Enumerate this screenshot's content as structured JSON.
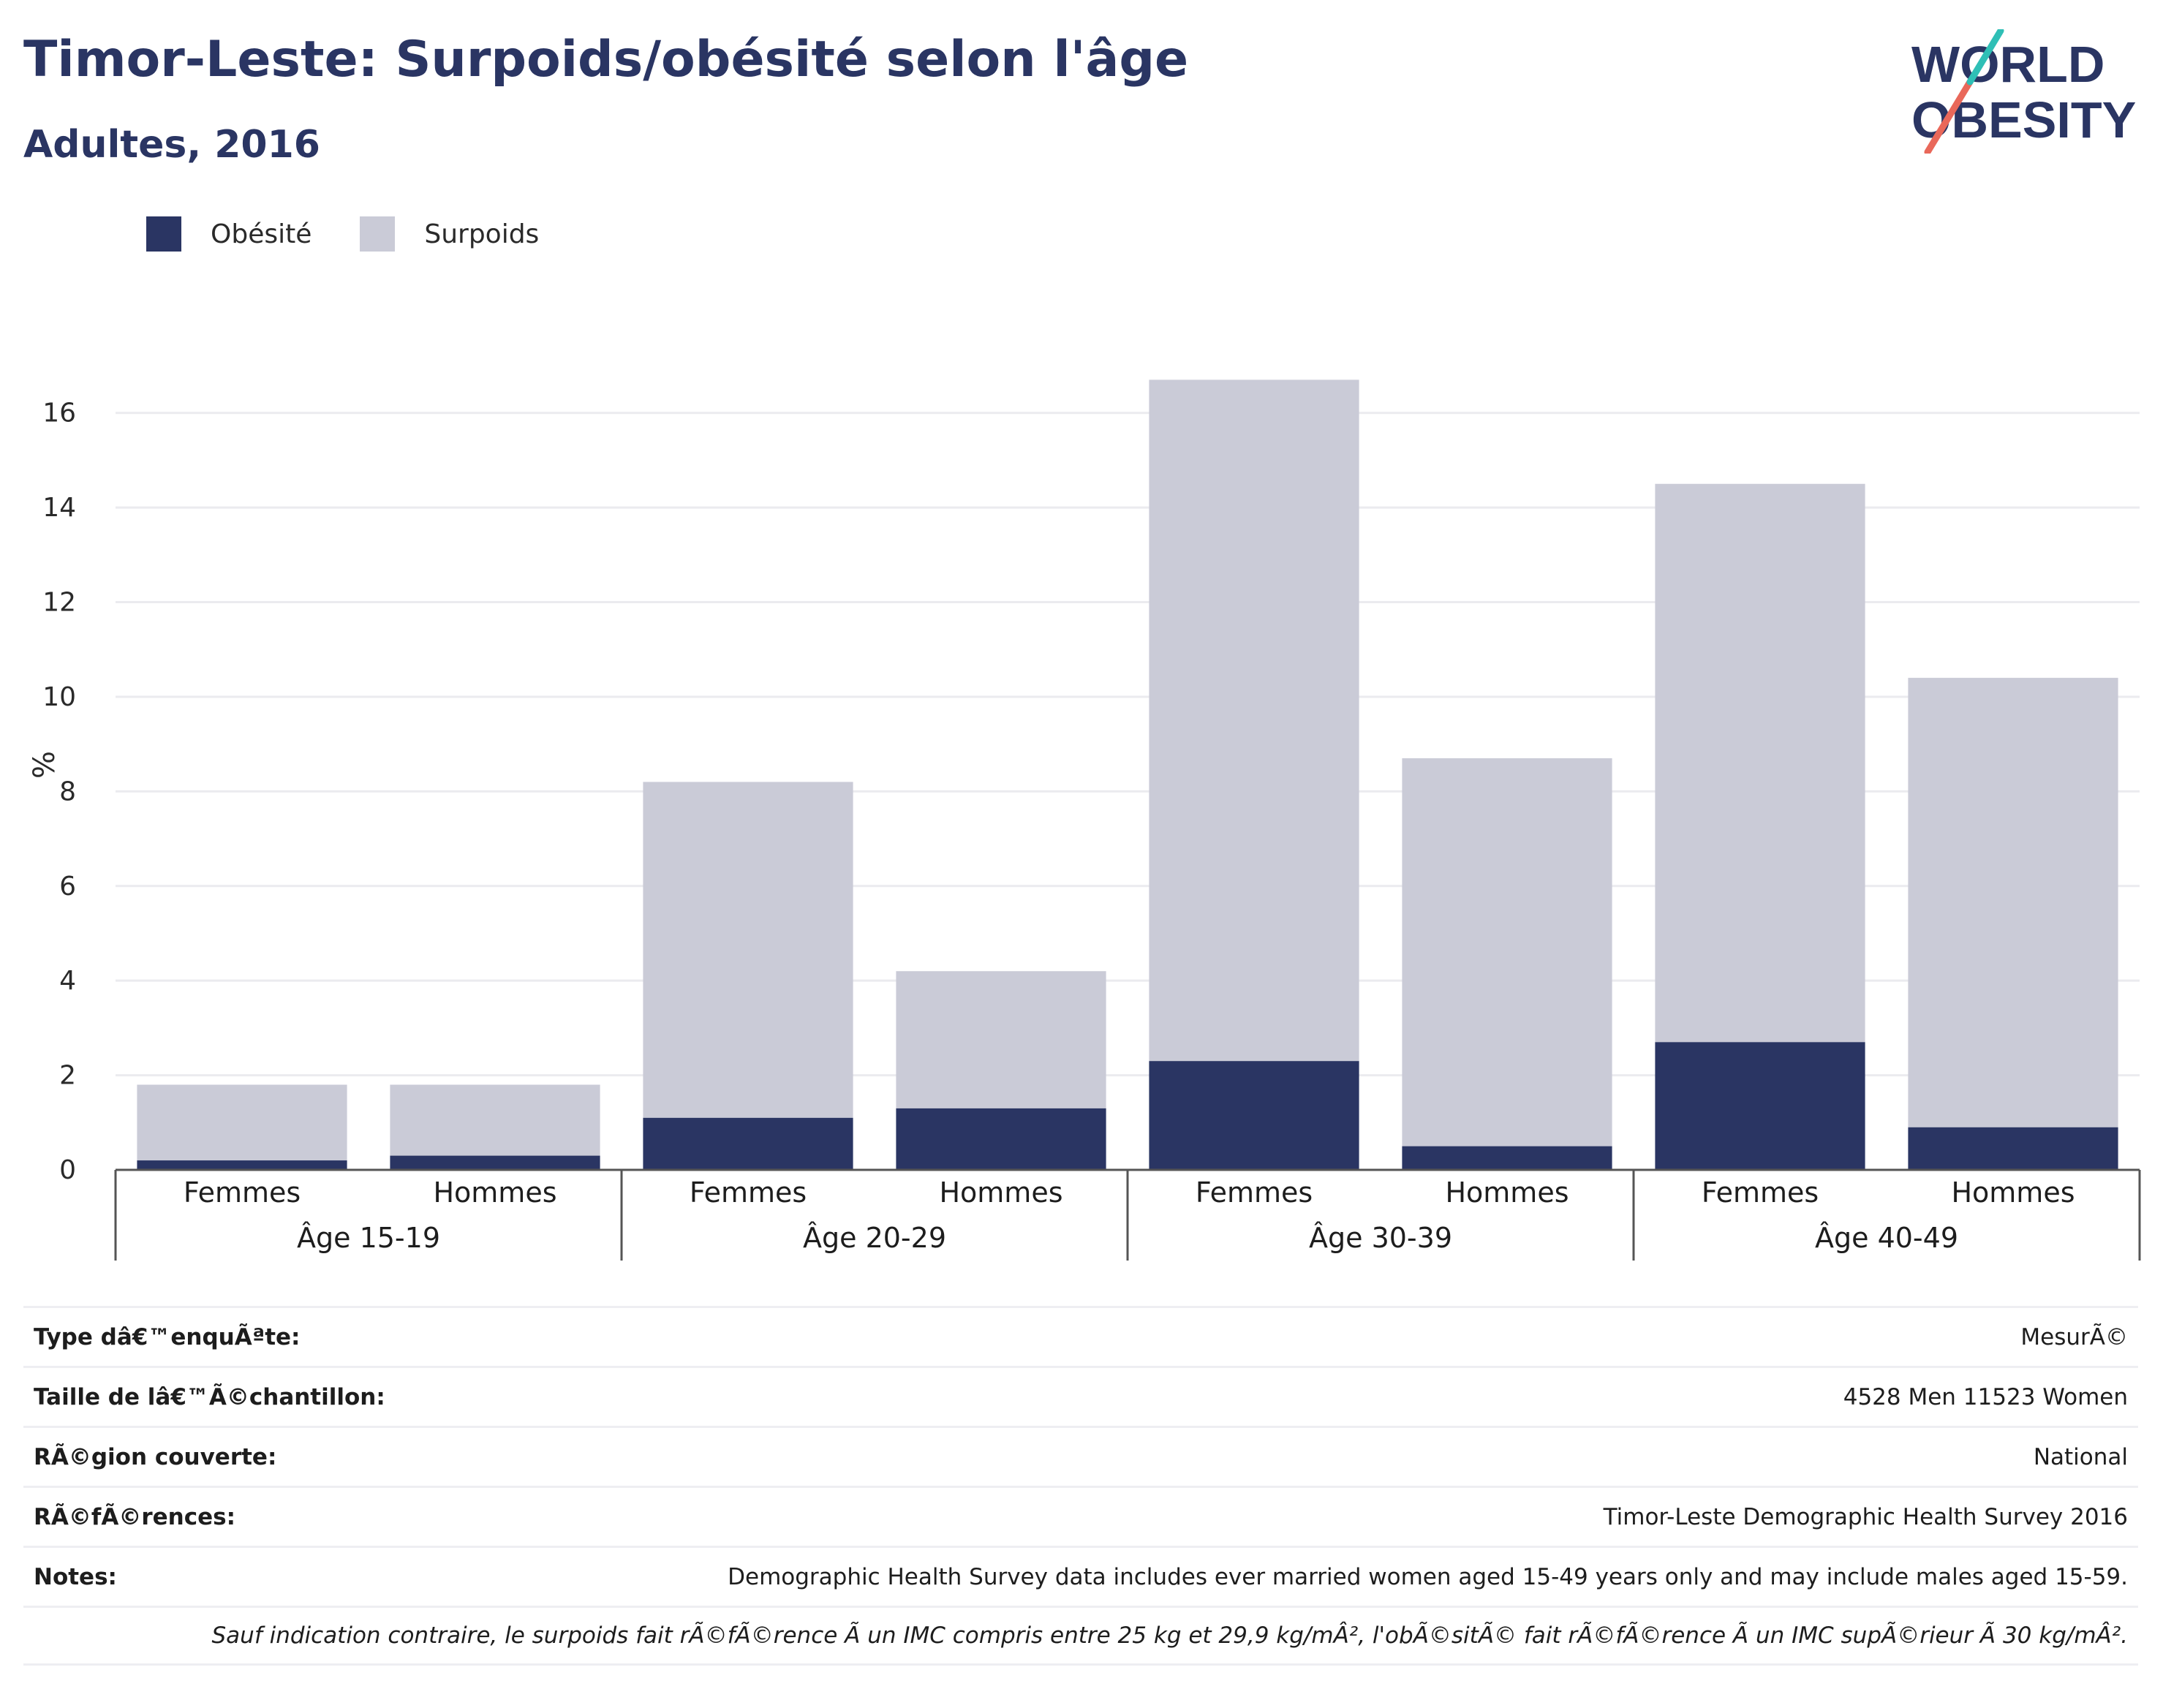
{
  "header": {
    "title": "Timor-Leste: Surpoids/obésité selon l'âge",
    "subtitle": "Adultes, 2016"
  },
  "logo": {
    "line1": "WORLD",
    "line2": "OBESITY"
  },
  "colors": {
    "obesity": "#2a3563",
    "overweight": "#cacbd7",
    "text": "#2a3563",
    "grid": "#ebebef",
    "accent_teal": "#2fbfb6",
    "accent_coral": "#e9685a"
  },
  "legend": [
    {
      "label": "Obésité",
      "color": "#2a3563"
    },
    {
      "label": "Surpoids",
      "color": "#cacbd7"
    }
  ],
  "chart_data": {
    "type": "bar",
    "stacked": true,
    "ylabel": "%",
    "ylim": [
      0,
      17
    ],
    "yticks": [
      0,
      2,
      4,
      6,
      8,
      10,
      12,
      14,
      16
    ],
    "grid": true,
    "legend_position": "top-left",
    "groups": [
      "Âge 15-19",
      "Âge 20-29",
      "Âge 30-39",
      "Âge 40-49"
    ],
    "categories": [
      "Femmes",
      "Hommes",
      "Femmes",
      "Hommes",
      "Femmes",
      "Hommes",
      "Femmes",
      "Hommes"
    ],
    "series": [
      {
        "name": "Obésité",
        "values": [
          0.2,
          0.3,
          1.1,
          1.3,
          2.3,
          0.5,
          2.7,
          0.9
        ]
      },
      {
        "name": "Surpoids",
        "values": [
          1.6,
          1.5,
          7.1,
          2.9,
          14.4,
          8.2,
          11.8,
          9.5
        ]
      }
    ]
  },
  "info_table": [
    {
      "key": "Type dâ€™enquÃªte:",
      "value": "MesurÃ©"
    },
    {
      "key": "Taille de lâ€™Ã©chantillon:",
      "value": "4528 Men 11523 Women"
    },
    {
      "key": "RÃ©gion couverte:",
      "value": "National"
    },
    {
      "key": "RÃ©fÃ©rences:",
      "value": "Timor-Leste Demographic Health Survey 2016"
    },
    {
      "key": "Notes:",
      "value": "Demographic Health Survey data includes ever married women aged 15-49 years only and may include males aged 15-59."
    }
  ],
  "footnote": "Sauf indication contraire, le surpoids fait rÃ©fÃ©rence Ã  un IMC compris entre 25 kg et 29,9 kg/mÂ², l'obÃ©sitÃ© fait rÃ©fÃ©rence Ã  un IMC supÃ©rieur Ã  30 kg/mÂ²."
}
